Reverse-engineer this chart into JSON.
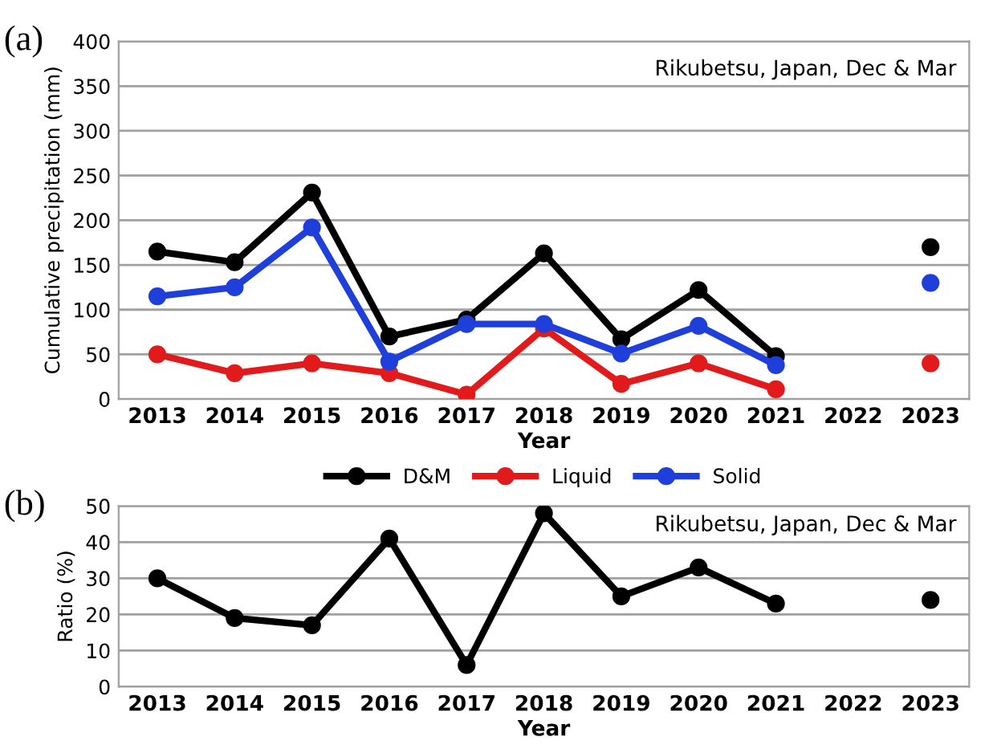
{
  "chart_data": [
    {
      "type": "line",
      "xlabel": "Year",
      "ylabel": "Cumulative precipitation (mm)",
      "annotations": [
        "(a)",
        "Rikubetsu, Japan, Dec & Mar"
      ],
      "categories": [
        "2013",
        "2014",
        "2015",
        "2016",
        "2017",
        "2018",
        "2019",
        "2020",
        "2021",
        "2022",
        "2023"
      ],
      "series": [
        {
          "name": "D&M",
          "color": "#000000",
          "values": [
            165,
            153,
            231,
            70,
            89,
            163,
            67,
            122,
            48,
            null,
            170
          ]
        },
        {
          "name": "Liquid",
          "color": "#e31a1c",
          "values": [
            50,
            29,
            40,
            29,
            5,
            79,
            17,
            40,
            11,
            null,
            40
          ]
        },
        {
          "name": "Solid",
          "color": "#1f3fdb",
          "values": [
            115,
            125,
            192,
            42,
            84,
            84,
            51,
            82,
            38,
            null,
            130
          ]
        }
      ],
      "ylim": [
        0,
        400
      ],
      "yticks": [
        0,
        50,
        100,
        150,
        200,
        250,
        300,
        350,
        400
      ],
      "grid": "y",
      "legend": "bottom",
      "marker": "circle",
      "line_style": "solid"
    },
    {
      "type": "line",
      "xlabel": "Year",
      "ylabel": "Ratio (%)",
      "annotations": [
        "(b)",
        "Rikubetsu, Japan, Dec & Mar"
      ],
      "categories": [
        "2013",
        "2014",
        "2015",
        "2016",
        "2017",
        "2018",
        "2019",
        "2020",
        "2021",
        "2022",
        "2023"
      ],
      "series": [
        {
          "color": "#000000",
          "values": [
            30,
            19,
            17,
            41,
            6,
            48,
            25,
            33,
            23,
            null,
            24
          ]
        }
      ],
      "ylim": [
        0,
        50
      ],
      "yticks": [
        0,
        10,
        20,
        30,
        40,
        50
      ],
      "grid": "y",
      "marker": "circle",
      "line_style": "solid"
    }
  ]
}
